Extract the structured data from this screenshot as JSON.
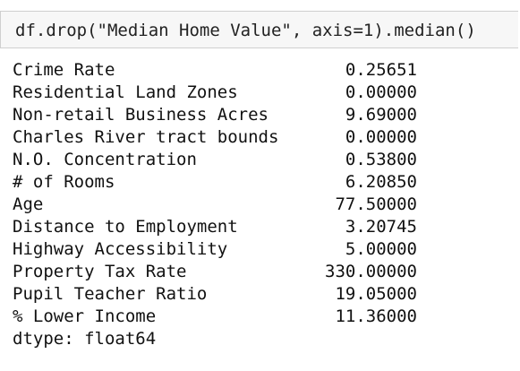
{
  "input": {
    "code": "df.drop(\"Median Home Value\", axis=1).median()"
  },
  "output": {
    "rows": [
      [
        "Crime Rate",
        "0.25651"
      ],
      [
        "Residential Land Zones",
        "0.00000"
      ],
      [
        "Non-retail Business Acres",
        "9.69000"
      ],
      [
        "Charles River tract bounds",
        "0.00000"
      ],
      [
        "N.O. Concentration",
        "0.53800"
      ],
      [
        "# of Rooms",
        "6.20850"
      ],
      [
        "Age",
        "77.50000"
      ],
      [
        "Distance to Employment",
        "3.20745"
      ],
      [
        "Highway Accessibility",
        "5.00000"
      ],
      [
        "Property Tax Rate",
        "330.00000"
      ],
      [
        "Pupil Teacher Ratio",
        "19.05000"
      ],
      [
        "% Lower Income",
        "11.36000"
      ]
    ],
    "dtype": "dtype: float64"
  }
}
